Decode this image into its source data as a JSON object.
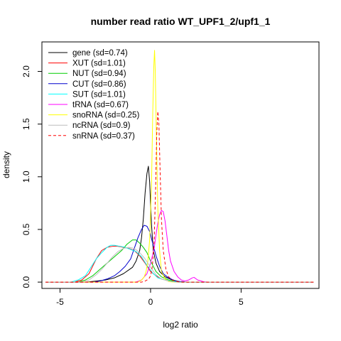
{
  "chart_data": {
    "type": "line",
    "title": "number read ratio WT_UPF1_2/upf1_1",
    "xlabel": "log2 ratio",
    "ylabel": "density",
    "xlim": [
      -6.0,
      9.3
    ],
    "ylim": [
      -0.06,
      2.28
    ],
    "x_ticks": [
      "-5",
      "0",
      "5"
    ],
    "x_tick_values": [
      -5,
      0,
      5
    ],
    "y_ticks": [
      "0.0",
      "0.5",
      "1.0",
      "1.5",
      "2.0"
    ],
    "y_tick_values": [
      0,
      0.5,
      1.0,
      1.5,
      2.0
    ],
    "grid": false,
    "legend_position": "top-left",
    "series": [
      {
        "name": "gene (sd=0.74)",
        "color": "#000000",
        "dash": false,
        "points": [
          [
            -5.8,
            0
          ],
          [
            -3.6,
            0
          ],
          [
            -3.0,
            0.01
          ],
          [
            -2.5,
            0.02
          ],
          [
            -2.0,
            0.04
          ],
          [
            -1.5,
            0.08
          ],
          [
            -1.0,
            0.14
          ],
          [
            -0.8,
            0.2
          ],
          [
            -0.6,
            0.3
          ],
          [
            -0.5,
            0.42
          ],
          [
            -0.4,
            0.6
          ],
          [
            -0.3,
            0.85
          ],
          [
            -0.2,
            1.03
          ],
          [
            -0.12,
            1.1
          ],
          [
            -0.05,
            0.95
          ],
          [
            0.05,
            0.55
          ],
          [
            0.15,
            0.3
          ],
          [
            0.3,
            0.18
          ],
          [
            0.5,
            0.1
          ],
          [
            0.8,
            0.05
          ],
          [
            1.2,
            0.02
          ],
          [
            1.6,
            0.005
          ],
          [
            2.0,
            0
          ],
          [
            9.0,
            0
          ]
        ]
      },
      {
        "name": "XUT (sd=1.01)",
        "color": "#ff0000",
        "dash": false,
        "points": [
          [
            -5.8,
            0
          ],
          [
            -4.2,
            0
          ],
          [
            -3.8,
            0.02
          ],
          [
            -3.4,
            0.08
          ],
          [
            -3.0,
            0.22
          ],
          [
            -2.7,
            0.3
          ],
          [
            -2.4,
            0.33
          ],
          [
            -2.1,
            0.34
          ],
          [
            -1.8,
            0.34
          ],
          [
            -1.5,
            0.33
          ],
          [
            -1.2,
            0.32
          ],
          [
            -0.9,
            0.3
          ],
          [
            -0.6,
            0.25
          ],
          [
            -0.3,
            0.18
          ],
          [
            0.0,
            0.1
          ],
          [
            0.3,
            0.06
          ],
          [
            0.6,
            0.03
          ],
          [
            1.0,
            0.01
          ],
          [
            1.5,
            0
          ],
          [
            9.0,
            0
          ]
        ]
      },
      {
        "name": "NUT (sd=0.94)",
        "color": "#00cd00",
        "dash": false,
        "points": [
          [
            -5.8,
            0
          ],
          [
            -4.0,
            0
          ],
          [
            -3.6,
            0.02
          ],
          [
            -3.2,
            0.06
          ],
          [
            -2.8,
            0.12
          ],
          [
            -2.4,
            0.18
          ],
          [
            -2.0,
            0.24
          ],
          [
            -1.6,
            0.3
          ],
          [
            -1.3,
            0.36
          ],
          [
            -1.0,
            0.4
          ],
          [
            -0.8,
            0.4
          ],
          [
            -0.6,
            0.37
          ],
          [
            -0.4,
            0.33
          ],
          [
            -0.2,
            0.28
          ],
          [
            0.0,
            0.2
          ],
          [
            0.3,
            0.1
          ],
          [
            0.6,
            0.05
          ],
          [
            1.0,
            0.02
          ],
          [
            1.5,
            0
          ],
          [
            9.0,
            0
          ]
        ]
      },
      {
        "name": "CUT (sd=0.86)",
        "color": "#0000cd",
        "dash": false,
        "points": [
          [
            -5.8,
            0
          ],
          [
            -3.2,
            0
          ],
          [
            -2.8,
            0.01
          ],
          [
            -2.4,
            0.03
          ],
          [
            -2.0,
            0.06
          ],
          [
            -1.7,
            0.1
          ],
          [
            -1.4,
            0.15
          ],
          [
            -1.1,
            0.22
          ],
          [
            -0.9,
            0.32
          ],
          [
            -0.7,
            0.42
          ],
          [
            -0.5,
            0.5
          ],
          [
            -0.35,
            0.54
          ],
          [
            -0.2,
            0.53
          ],
          [
            -0.05,
            0.48
          ],
          [
            0.1,
            0.38
          ],
          [
            0.3,
            0.25
          ],
          [
            0.5,
            0.15
          ],
          [
            0.7,
            0.08
          ],
          [
            1.0,
            0.04
          ],
          [
            1.4,
            0.01
          ],
          [
            2.0,
            0
          ],
          [
            9.0,
            0
          ]
        ]
      },
      {
        "name": "SUT (sd=1.01)",
        "color": "#00ffff",
        "dash": false,
        "points": [
          [
            -5.8,
            0
          ],
          [
            -4.4,
            0
          ],
          [
            -4.0,
            0.02
          ],
          [
            -3.6,
            0.06
          ],
          [
            -3.3,
            0.14
          ],
          [
            -3.0,
            0.22
          ],
          [
            -2.7,
            0.28
          ],
          [
            -2.4,
            0.33
          ],
          [
            -2.2,
            0.35
          ],
          [
            -2.0,
            0.35
          ],
          [
            -1.7,
            0.34
          ],
          [
            -1.4,
            0.33
          ],
          [
            -1.1,
            0.31
          ],
          [
            -0.8,
            0.29
          ],
          [
            -0.5,
            0.24
          ],
          [
            -0.2,
            0.16
          ],
          [
            0.1,
            0.09
          ],
          [
            0.4,
            0.04
          ],
          [
            0.8,
            0.02
          ],
          [
            1.2,
            0.005
          ],
          [
            1.6,
            0
          ],
          [
            9.0,
            0
          ]
        ]
      },
      {
        "name": "tRNA (sd=0.67)",
        "color": "#ff00ff",
        "dash": false,
        "points": [
          [
            -5.8,
            0
          ],
          [
            -0.8,
            0
          ],
          [
            -0.5,
            0.02
          ],
          [
            -0.2,
            0.08
          ],
          [
            0.0,
            0.18
          ],
          [
            0.1,
            0.25
          ],
          [
            0.2,
            0.32
          ],
          [
            0.3,
            0.45
          ],
          [
            0.4,
            0.56
          ],
          [
            0.5,
            0.64
          ],
          [
            0.6,
            0.68
          ],
          [
            0.7,
            0.67
          ],
          [
            0.8,
            0.58
          ],
          [
            0.9,
            0.44
          ],
          [
            1.0,
            0.3
          ],
          [
            1.1,
            0.2
          ],
          [
            1.3,
            0.1
          ],
          [
            1.5,
            0.05
          ],
          [
            1.7,
            0.02
          ],
          [
            1.9,
            0.01
          ],
          [
            2.1,
            0.02
          ],
          [
            2.3,
            0.04
          ],
          [
            2.4,
            0.045
          ],
          [
            2.6,
            0.02
          ],
          [
            2.9,
            0.005
          ],
          [
            3.2,
            0
          ],
          [
            9.0,
            0
          ]
        ]
      },
      {
        "name": "snoRNA (sd=0.25)",
        "color": "#ffff00",
        "dash": false,
        "points": [
          [
            -5.8,
            0
          ],
          [
            -0.7,
            0
          ],
          [
            -0.5,
            0.02
          ],
          [
            -0.35,
            0.05
          ],
          [
            -0.25,
            0.1
          ],
          [
            -0.15,
            0.2
          ],
          [
            -0.05,
            0.4
          ],
          [
            0.05,
            0.9
          ],
          [
            0.12,
            1.6
          ],
          [
            0.18,
            2.05
          ],
          [
            0.22,
            2.2
          ],
          [
            0.26,
            2.0
          ],
          [
            0.32,
            1.4
          ],
          [
            0.4,
            0.7
          ],
          [
            0.5,
            0.3
          ],
          [
            0.6,
            0.1
          ],
          [
            0.8,
            0.03
          ],
          [
            1.0,
            0.005
          ],
          [
            1.3,
            0
          ],
          [
            9.0,
            0
          ]
        ]
      },
      {
        "name": "ncRNA (sd=0.9)",
        "color": "#bebebe",
        "dash": false,
        "points": [
          [
            -5.8,
            0
          ],
          [
            -3.8,
            0
          ],
          [
            -3.4,
            0.02
          ],
          [
            -3.0,
            0.07
          ],
          [
            -2.7,
            0.12
          ],
          [
            -2.4,
            0.18
          ],
          [
            -2.1,
            0.24
          ],
          [
            -1.8,
            0.29
          ],
          [
            -1.5,
            0.32
          ],
          [
            -1.2,
            0.33
          ],
          [
            -0.9,
            0.32
          ],
          [
            -0.6,
            0.28
          ],
          [
            -0.3,
            0.22
          ],
          [
            0.0,
            0.14
          ],
          [
            0.3,
            0.07
          ],
          [
            0.6,
            0.03
          ],
          [
            1.0,
            0.01
          ],
          [
            1.4,
            0
          ],
          [
            9.0,
            0
          ]
        ]
      },
      {
        "name": "snRNA (sd=0.37)",
        "color": "#ff0000",
        "dash": true,
        "points": [
          [
            -5.8,
            0
          ],
          [
            -0.5,
            0
          ],
          [
            -0.3,
            0.01
          ],
          [
            -0.1,
            0.03
          ],
          [
            0.0,
            0.06
          ],
          [
            0.1,
            0.15
          ],
          [
            0.2,
            0.4
          ],
          [
            0.28,
            0.9
          ],
          [
            0.34,
            1.4
          ],
          [
            0.4,
            1.62
          ],
          [
            0.46,
            1.5
          ],
          [
            0.52,
            1.1
          ],
          [
            0.6,
            0.6
          ],
          [
            0.7,
            0.3
          ],
          [
            0.85,
            0.12
          ],
          [
            1.0,
            0.05
          ],
          [
            1.2,
            0.02
          ],
          [
            1.5,
            0.005
          ],
          [
            1.8,
            0
          ],
          [
            9.0,
            0
          ]
        ]
      }
    ]
  }
}
